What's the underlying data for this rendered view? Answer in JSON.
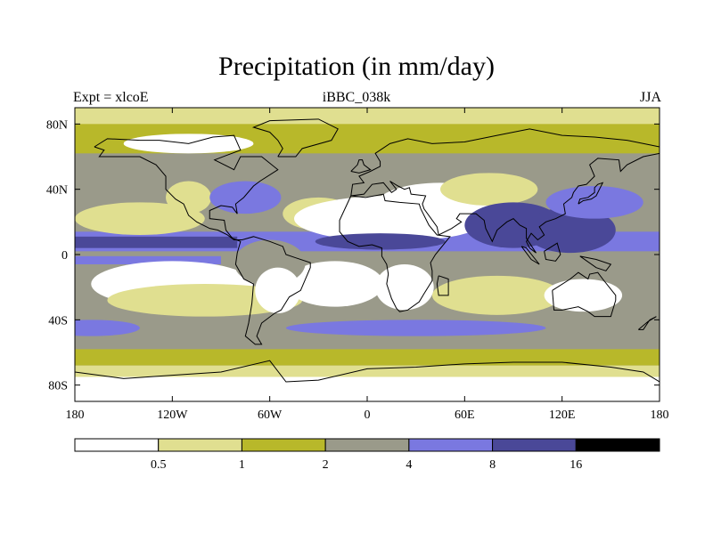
{
  "title": "Precipitation (in mm/day)",
  "subtitle_left": "Expt = xlcoE",
  "subtitle_center": "iBBC_038k",
  "subtitle_right": "JJA",
  "colors": {
    "lvl0": "#ffffff",
    "lvl1": "#e0df90",
    "lvl2": "#b8b82a",
    "lvl3": "#9a9a8a",
    "lvl4": "#7a78e0",
    "lvl5": "#4a4898",
    "lvl6": "#000000",
    "coast": "#000000"
  },
  "chart_data": {
    "type": "heatmap",
    "title": "Precipitation (in mm/day)",
    "xlim": [
      -180,
      180
    ],
    "ylim": [
      -90,
      90
    ],
    "x_ticks": [
      {
        "value": -180,
        "label": "180"
      },
      {
        "value": -120,
        "label": "120W"
      },
      {
        "value": -60,
        "label": "60W"
      },
      {
        "value": 0,
        "label": "0"
      },
      {
        "value": 60,
        "label": "60E"
      },
      {
        "value": 120,
        "label": "120E"
      },
      {
        "value": 180,
        "label": "180"
      }
    ],
    "y_ticks": [
      {
        "value": 80,
        "label": "80N"
      },
      {
        "value": 40,
        "label": "40N"
      },
      {
        "value": 0,
        "label": "0"
      },
      {
        "value": -40,
        "label": "40S"
      },
      {
        "value": -80,
        "label": "80S"
      }
    ],
    "colorbar": {
      "levels": [
        0.5,
        1,
        2,
        4,
        8,
        16
      ],
      "labels": [
        "0.5",
        "1",
        "2",
        "4",
        "8",
        "16"
      ],
      "bins": 7
    }
  }
}
